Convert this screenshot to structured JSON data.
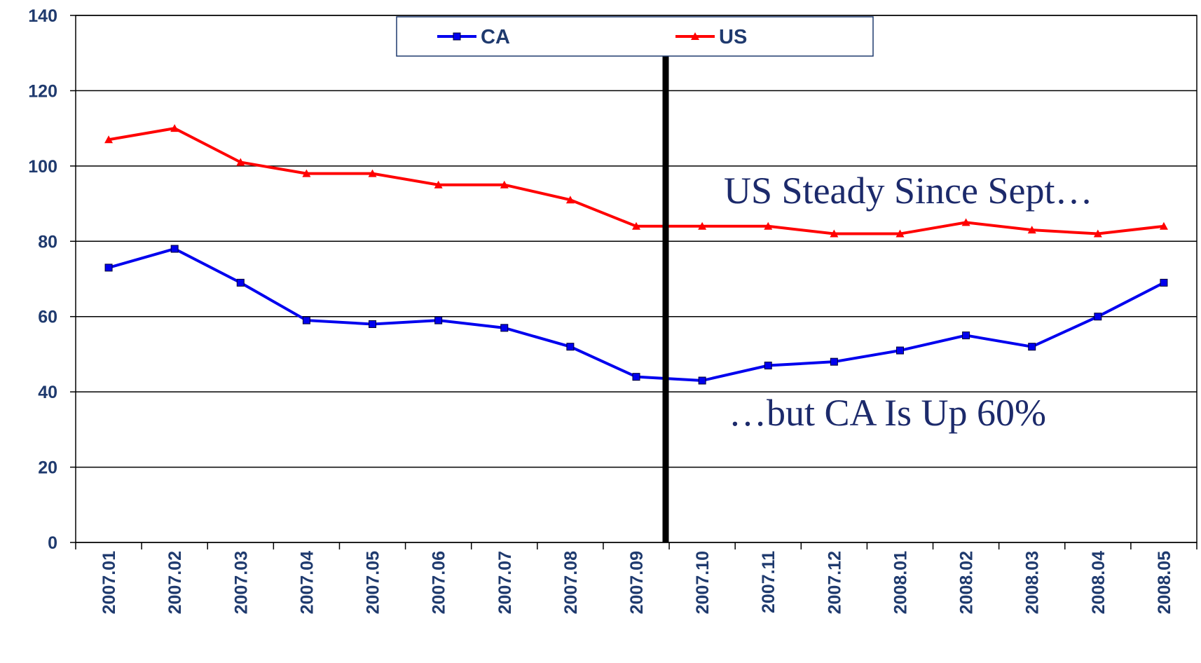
{
  "chart_data": {
    "type": "line",
    "categories": [
      "2007.01",
      "2007.02",
      "2007.03",
      "2007.04",
      "2007.05",
      "2007.06",
      "2007.07",
      "2007.08",
      "2007.09",
      "2007.10",
      "2007.11",
      "2007.12",
      "2008.01",
      "2008.02",
      "2008.03",
      "2008.04",
      "2008.05"
    ],
    "series": [
      {
        "name": "CA",
        "color": "#0000ee",
        "marker": "square",
        "values": [
          73,
          78,
          69,
          59,
          58,
          59,
          57,
          52,
          44,
          43,
          47,
          48,
          51,
          55,
          52,
          60,
          69
        ]
      },
      {
        "name": "US",
        "color": "#ff0000",
        "marker": "triangle",
        "values": [
          107,
          110,
          101,
          98,
          98,
          95,
          95,
          91,
          84,
          84,
          84,
          82,
          82,
          85,
          83,
          82,
          84
        ]
      }
    ],
    "ylim": [
      0,
      140
    ],
    "yticks": [
      0,
      20,
      40,
      60,
      80,
      100,
      120,
      140
    ],
    "grid": true,
    "annotations": [
      "US Steady Since Sept…",
      "…but CA Is Up 60%"
    ]
  }
}
